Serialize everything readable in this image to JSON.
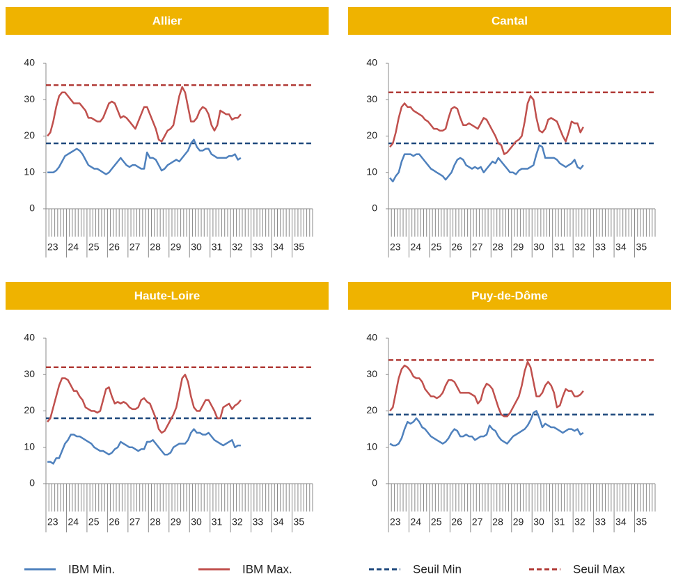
{
  "legend": [
    {
      "name": "IBM Min.",
      "color": "#4f81bd",
      "dashed": false
    },
    {
      "name": "IBM Max.",
      "color": "#c0504d",
      "dashed": false
    },
    {
      "name": "Seuil Min",
      "color": "#1f497d",
      "dashed": true
    },
    {
      "name": "Seuil Max",
      "color": "#b03a36",
      "dashed": true
    }
  ],
  "chart_data": [
    {
      "type": "line",
      "title": "Allier",
      "ylim": [
        0,
        40
      ],
      "yticks": [
        0,
        10,
        20,
        30,
        40
      ],
      "thresholds": [
        18,
        34
      ],
      "categories": [
        "23",
        null,
        null,
        null,
        null,
        null,
        null,
        "24",
        null,
        null,
        null,
        null,
        null,
        null,
        "25",
        null,
        null,
        null,
        null,
        null,
        null,
        "26",
        null,
        null,
        null,
        null,
        null,
        null,
        "27",
        null,
        null,
        null,
        null,
        null,
        null,
        "28",
        null,
        null,
        null,
        null,
        null,
        null,
        "29",
        null,
        null,
        null,
        null,
        null,
        null,
        "30",
        null,
        null,
        null,
        null,
        null,
        null,
        "31",
        null,
        null,
        null,
        null,
        null,
        null,
        "32",
        null,
        null,
        null,
        null,
        null,
        null,
        "33",
        null,
        null,
        null,
        null,
        null,
        null,
        "34",
        null,
        null,
        null,
        null,
        null,
        null,
        "35",
        null,
        null,
        null,
        null,
        null,
        null
      ],
      "series": [
        {
          "values": [
            10,
            10,
            10,
            10.5,
            11.5,
            13,
            14.5,
            15,
            15.5,
            16,
            16.5,
            16,
            15,
            13.5,
            12,
            11.5,
            11,
            11,
            10.5,
            10,
            9.5,
            10,
            11,
            12,
            13,
            14,
            13,
            12,
            11.5,
            12,
            12,
            11.5,
            11,
            11,
            15.5,
            14,
            14,
            13.5,
            12,
            10.5,
            11,
            12,
            12.5,
            13,
            13.5,
            13,
            14,
            15,
            16,
            18,
            19,
            17,
            16,
            16,
            16.5,
            16.5,
            15,
            14.5,
            14,
            14,
            14,
            14,
            14.5,
            14.5,
            15,
            13.5,
            14,
            null,
            null,
            null,
            null,
            null,
            null,
            null,
            null,
            null,
            null,
            null,
            null,
            null,
            null,
            null,
            null,
            null,
            null,
            null,
            null,
            null,
            null,
            null,
            null
          ]
        },
        {
          "values": [
            20,
            21,
            24,
            28,
            31,
            32,
            32,
            31,
            30,
            29,
            29,
            29,
            28,
            27,
            25,
            25,
            24.5,
            24,
            24,
            25,
            27,
            29,
            29.5,
            29,
            27,
            25,
            25.5,
            25,
            24,
            23,
            22,
            24,
            26,
            28,
            28,
            26,
            24,
            22,
            19,
            18.5,
            20,
            21.5,
            22,
            23,
            27,
            31,
            33.5,
            32,
            28,
            24,
            24,
            25,
            27,
            28,
            27.5,
            26,
            23,
            21.5,
            23,
            27,
            26.5,
            26,
            26,
            24.5,
            25,
            25,
            26,
            null,
            null,
            null,
            null,
            null,
            null,
            null,
            null,
            null,
            null,
            null,
            null,
            null,
            null,
            null,
            null,
            null,
            null,
            null,
            null,
            null,
            null,
            null,
            null
          ]
        }
      ]
    },
    {
      "type": "line",
      "title": "Cantal",
      "ylim": [
        0,
        40
      ],
      "yticks": [
        0,
        10,
        20,
        30,
        40
      ],
      "thresholds": [
        18,
        32
      ],
      "categories": [
        "23",
        null,
        null,
        null,
        null,
        null,
        null,
        "24",
        null,
        null,
        null,
        null,
        null,
        null,
        "25",
        null,
        null,
        null,
        null,
        null,
        null,
        "26",
        null,
        null,
        null,
        null,
        null,
        null,
        "27",
        null,
        null,
        null,
        null,
        null,
        null,
        "28",
        null,
        null,
        null,
        null,
        null,
        null,
        "29",
        null,
        null,
        null,
        null,
        null,
        null,
        "30",
        null,
        null,
        null,
        null,
        null,
        null,
        "31",
        null,
        null,
        null,
        null,
        null,
        null,
        "32",
        null,
        null,
        null,
        null,
        null,
        null,
        "33",
        null,
        null,
        null,
        null,
        null,
        null,
        "34",
        null,
        null,
        null,
        null,
        null,
        null,
        "35",
        null,
        null,
        null,
        null,
        null,
        null
      ],
      "series": [
        {
          "values": [
            8.5,
            7.5,
            9,
            10,
            13,
            15,
            15,
            15,
            14.5,
            15,
            15,
            14,
            13,
            12,
            11,
            10.5,
            10,
            9.5,
            9,
            8,
            9,
            10,
            12,
            13.5,
            14,
            13.5,
            12,
            11.5,
            11,
            11.5,
            11,
            11.5,
            10,
            11,
            12,
            13,
            12.5,
            14,
            13,
            12,
            11,
            10,
            10,
            9.5,
            10.5,
            11,
            11,
            11,
            11.5,
            12,
            15,
            17.5,
            17,
            14,
            14,
            14,
            14,
            13.5,
            12.5,
            12,
            11.5,
            12,
            12.5,
            13.5,
            11.5,
            11,
            12,
            null,
            null,
            null,
            null,
            null,
            null,
            null,
            null,
            null,
            null,
            null,
            null,
            null,
            null,
            null,
            null,
            null,
            null,
            null,
            null,
            null,
            null,
            null,
            null
          ]
        },
        {
          "values": [
            17,
            18,
            21,
            25,
            28,
            29,
            28,
            28,
            27,
            26.5,
            26,
            25.5,
            24.5,
            24,
            23,
            22,
            22,
            21.5,
            21.5,
            22,
            25,
            27.5,
            28,
            27.5,
            25,
            23,
            23,
            23.5,
            23,
            22.5,
            22,
            23.5,
            25,
            24.5,
            23,
            21.5,
            20,
            18,
            17.5,
            15,
            15.5,
            16.5,
            17.5,
            18.5,
            19,
            20,
            24,
            29,
            31,
            30,
            25,
            21.5,
            21,
            22,
            24.5,
            25,
            24.5,
            24,
            22,
            20,
            18.5,
            21,
            24,
            23.5,
            23.5,
            21,
            22.5,
            null,
            null,
            null,
            null,
            null,
            null,
            null,
            null,
            null,
            null,
            null,
            null,
            null,
            null,
            null,
            null,
            null,
            null,
            null,
            null,
            null,
            null,
            null,
            null
          ]
        }
      ]
    },
    {
      "type": "line",
      "title": "Haute-Loire",
      "ylim": [
        0,
        40
      ],
      "yticks": [
        0,
        10,
        20,
        30,
        40
      ],
      "thresholds": [
        18,
        32
      ],
      "categories": [
        "23",
        null,
        null,
        null,
        null,
        null,
        null,
        "24",
        null,
        null,
        null,
        null,
        null,
        null,
        "25",
        null,
        null,
        null,
        null,
        null,
        null,
        "26",
        null,
        null,
        null,
        null,
        null,
        null,
        "27",
        null,
        null,
        null,
        null,
        null,
        null,
        "28",
        null,
        null,
        null,
        null,
        null,
        null,
        "29",
        null,
        null,
        null,
        null,
        null,
        null,
        "30",
        null,
        null,
        null,
        null,
        null,
        null,
        "31",
        null,
        null,
        null,
        null,
        null,
        null,
        "32",
        null,
        null,
        null,
        null,
        null,
        null,
        "33",
        null,
        null,
        null,
        null,
        null,
        null,
        "34",
        null,
        null,
        null,
        null,
        null,
        null,
        "35",
        null,
        null,
        null,
        null,
        null,
        null
      ],
      "series": [
        {
          "values": [
            6,
            6,
            5.5,
            7,
            7,
            9,
            11,
            12,
            13.5,
            13.5,
            13,
            13,
            12.5,
            12,
            11.5,
            11,
            10,
            9.5,
            9,
            9,
            8.5,
            8,
            8.5,
            9.5,
            10,
            11.5,
            11,
            10.5,
            10,
            10,
            9.5,
            9,
            9.5,
            9.5,
            11.5,
            11.5,
            12,
            11,
            10,
            9,
            8,
            8,
            8.5,
            10,
            10.5,
            11,
            11,
            11,
            12,
            14,
            15,
            14,
            14,
            13.5,
            13.5,
            14,
            13,
            12,
            11.5,
            11,
            10.5,
            11,
            11.5,
            12,
            10,
            10.5,
            10.5,
            null,
            null,
            null,
            null,
            null,
            null,
            null,
            null,
            null,
            null,
            null,
            null,
            null,
            null,
            null,
            null,
            null,
            null,
            null,
            null,
            null,
            null,
            null,
            null
          ]
        },
        {
          "values": [
            17,
            18,
            21,
            24,
            27,
            29,
            29,
            28.5,
            27,
            25.5,
            25.5,
            24,
            23,
            21,
            20.5,
            20,
            20,
            19.5,
            20,
            23,
            26,
            26.5,
            24,
            22,
            22.5,
            22,
            22.5,
            22,
            21,
            20.5,
            20.5,
            21,
            23,
            23.5,
            22.5,
            22,
            20,
            18,
            15,
            14,
            14.5,
            16,
            17.5,
            19,
            21,
            25,
            29,
            30,
            28,
            24,
            21,
            20,
            20,
            21.5,
            23,
            23,
            21.5,
            20,
            18,
            18,
            21,
            21.5,
            22,
            20.5,
            21.5,
            22,
            23,
            null,
            null,
            null,
            null,
            null,
            null,
            null,
            null,
            null,
            null,
            null,
            null,
            null,
            null,
            null,
            null,
            null,
            null,
            null,
            null,
            null,
            null,
            null,
            null
          ]
        }
      ]
    },
    {
      "type": "line",
      "title": "Puy-de-Dôme",
      "ylim": [
        0,
        40
      ],
      "yticks": [
        0,
        10,
        20,
        30,
        40
      ],
      "thresholds": [
        19,
        34
      ],
      "categories": [
        "23",
        null,
        null,
        null,
        null,
        null,
        null,
        "24",
        null,
        null,
        null,
        null,
        null,
        null,
        "25",
        null,
        null,
        null,
        null,
        null,
        null,
        "26",
        null,
        null,
        null,
        null,
        null,
        null,
        "27",
        null,
        null,
        null,
        null,
        null,
        null,
        "28",
        null,
        null,
        null,
        null,
        null,
        null,
        "29",
        null,
        null,
        null,
        null,
        null,
        null,
        "30",
        null,
        null,
        null,
        null,
        null,
        null,
        "31",
        null,
        null,
        null,
        null,
        null,
        null,
        "32",
        null,
        null,
        null,
        null,
        null,
        null,
        "33",
        null,
        null,
        null,
        null,
        null,
        null,
        "34",
        null,
        null,
        null,
        null,
        null,
        null,
        "35",
        null,
        null,
        null,
        null,
        null,
        null
      ],
      "series": [
        {
          "values": [
            11,
            10.5,
            10.5,
            11,
            12.5,
            15,
            17,
            16.5,
            17,
            18,
            17,
            15.5,
            15,
            14,
            13,
            12.5,
            12,
            11.5,
            11,
            11.5,
            12.5,
            14,
            15,
            14.5,
            13,
            13,
            13.5,
            13,
            13,
            12,
            12.5,
            13,
            13,
            13.5,
            16,
            15,
            14.5,
            13,
            12,
            11.5,
            11,
            12,
            13,
            13.5,
            14,
            14.5,
            15,
            16,
            17.5,
            19.5,
            20,
            18,
            15.5,
            16.5,
            16,
            15.5,
            15.5,
            15,
            14.5,
            14,
            14.5,
            15,
            15,
            14.5,
            15,
            13.5,
            14,
            null,
            null,
            null,
            null,
            null,
            null,
            null,
            null,
            null,
            null,
            null,
            null,
            null,
            null,
            null,
            null,
            null,
            null,
            null,
            null,
            null,
            null,
            null,
            null
          ]
        },
        {
          "values": [
            20,
            21,
            25,
            29,
            31.5,
            32.5,
            32,
            31,
            29.5,
            29,
            29,
            28,
            26,
            25,
            24,
            24,
            23.5,
            24,
            25,
            27,
            28.5,
            28.5,
            28,
            26.5,
            25,
            25,
            25,
            25,
            24.5,
            24,
            22,
            23,
            26,
            27.5,
            27,
            26,
            23.5,
            21,
            19,
            18.5,
            18.5,
            19.5,
            21,
            22.5,
            24,
            27,
            31,
            33.5,
            32,
            28,
            24,
            24,
            25,
            27,
            28,
            27,
            25,
            21,
            21.5,
            24,
            26,
            25.5,
            25.5,
            24,
            24,
            24.5,
            25.5,
            null,
            null,
            null,
            null,
            null,
            null,
            null,
            null,
            null,
            null,
            null,
            null,
            null,
            null,
            null,
            null,
            null,
            null,
            null,
            null,
            null,
            null,
            null,
            null
          ]
        }
      ]
    }
  ]
}
